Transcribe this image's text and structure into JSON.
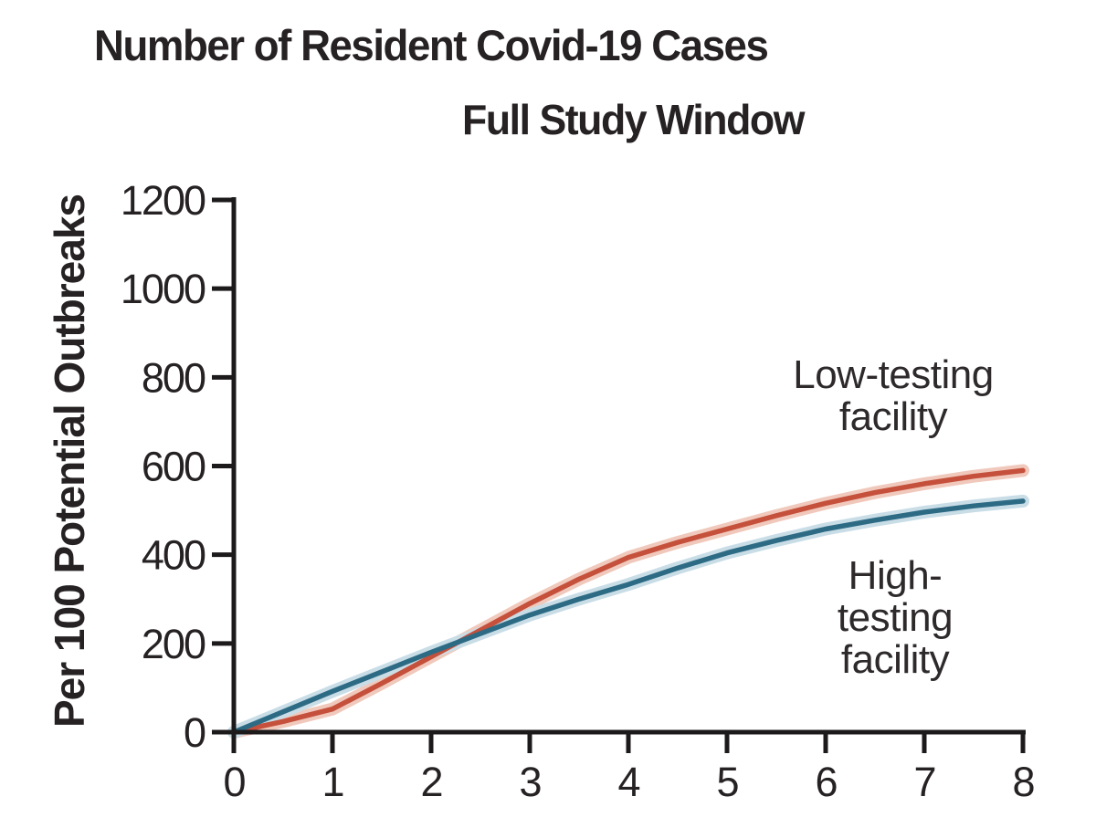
{
  "header": {
    "title": "Number of Resident Covid-19 Cases",
    "subtitle": "Full Study Window"
  },
  "annotations": {
    "low_testing_label": "Low-testing\nfacility",
    "high_testing_label": "High-testing\nfacility"
  },
  "colors": {
    "text": "#262223",
    "axis": "#1d1a1b",
    "low_testing_line": "#c5503b",
    "low_testing_band": "#f0c9bc",
    "high_testing_line": "#2d6b85",
    "high_testing_band": "#c9dde7"
  },
  "chart_data": {
    "type": "line",
    "title": "Number of Resident Covid-19 Cases",
    "subtitle": "Full Study Window",
    "xlabel": "",
    "ylabel": "Per 100 Potential Outbreaks",
    "xlim": [
      0,
      8
    ],
    "ylim": [
      0,
      1200
    ],
    "x_ticks": [
      0,
      1,
      2,
      3,
      4,
      5,
      6,
      7,
      8
    ],
    "y_ticks": [
      0,
      200,
      400,
      600,
      800,
      1000,
      1200
    ],
    "grid": false,
    "legend_position": "inline-annotations",
    "series": [
      {
        "name": "Low-testing facility",
        "color": "#c5503b",
        "band_color": "#f0c9bc",
        "x": [
          0,
          0.5,
          1,
          1.5,
          2,
          2.5,
          3,
          3.5,
          4,
          4.5,
          5,
          5.5,
          6,
          6.5,
          7,
          7.5,
          8
        ],
        "values": [
          0,
          24,
          52,
          110,
          170,
          230,
          290,
          345,
          394,
          428,
          458,
          488,
          516,
          540,
          560,
          577,
          590
        ]
      },
      {
        "name": "High-testing facility",
        "color": "#2d6b85",
        "band_color": "#c9dde7",
        "x": [
          0,
          0.5,
          1,
          1.5,
          2,
          2.5,
          3,
          3.5,
          4,
          4.5,
          5,
          5.5,
          6,
          6.5,
          7,
          7.5,
          8
        ],
        "values": [
          0,
          46,
          92,
          136,
          180,
          222,
          264,
          300,
          333,
          370,
          404,
          432,
          458,
          478,
          496,
          510,
          521
        ]
      }
    ]
  }
}
